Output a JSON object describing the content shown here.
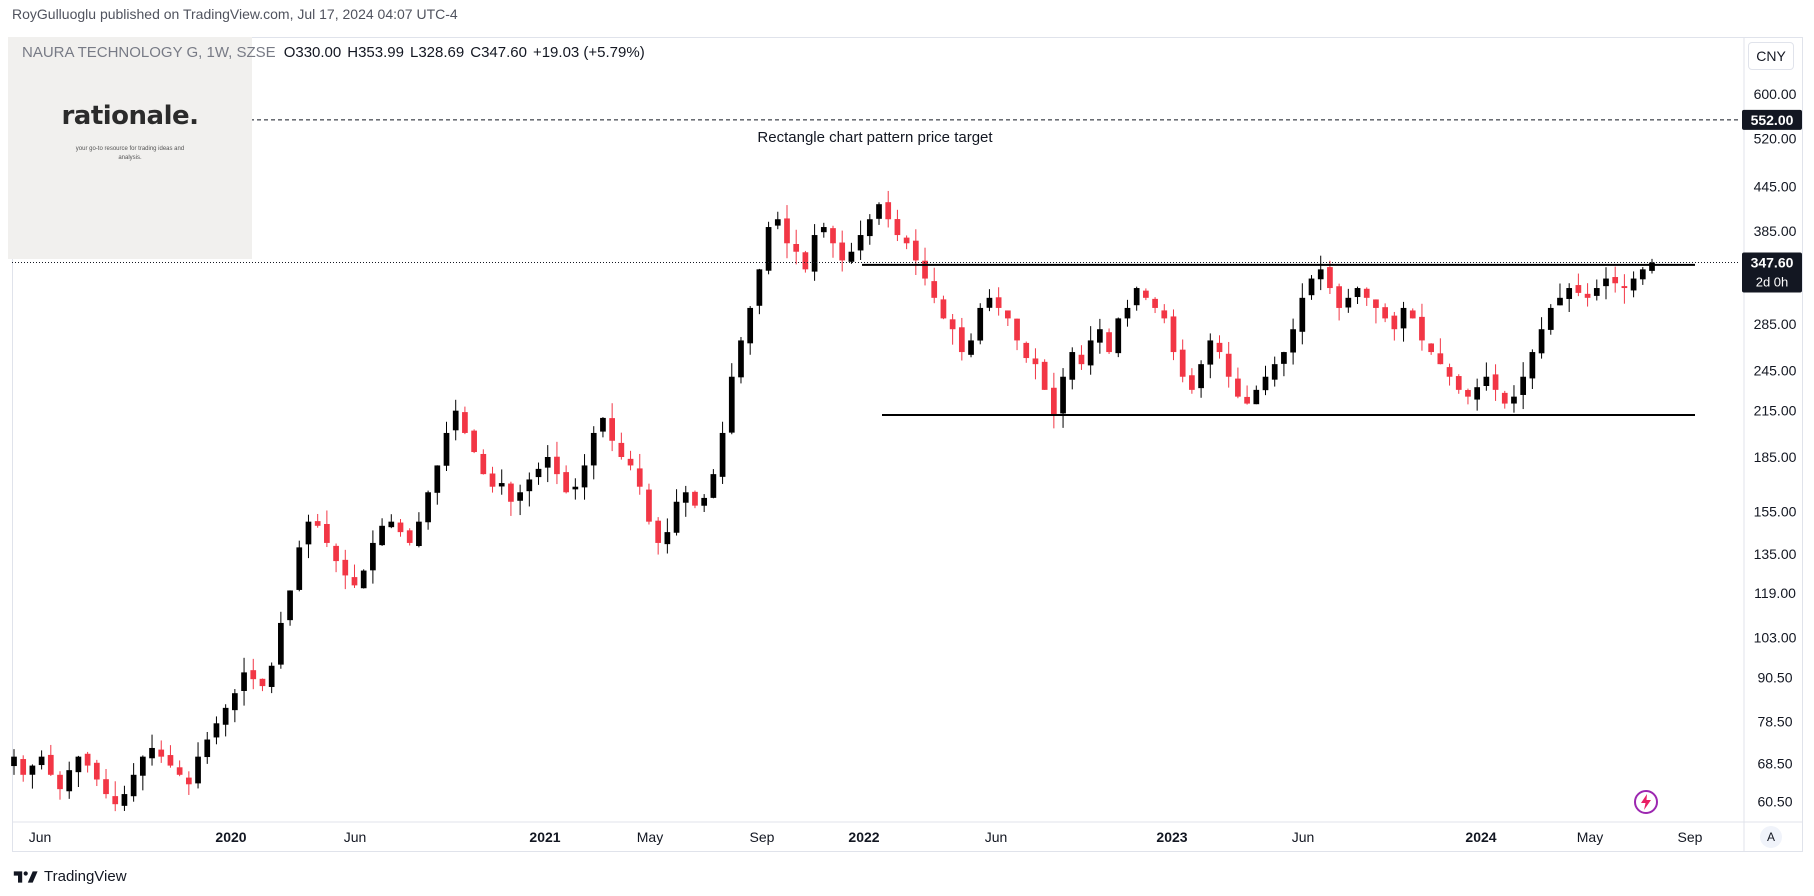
{
  "header": {
    "published": "RoyGulluoglu published on TradingView.com, Jul 17, 2024 04:07 UTC-4"
  },
  "legend": {
    "symbol": "NAURA TECHNOLOGY G, 1W, SZSE",
    "open_label": "O",
    "open": "330.00",
    "high_label": "H",
    "high": "353.99",
    "low_label": "L",
    "low": "328.69",
    "close_label": "C",
    "close": "347.60",
    "change": "+19.03 (+5.79%)"
  },
  "currency": "CNY",
  "branding": {
    "logo_text": "rationale.",
    "tagline": "your go-to resource for trading ideas and analysis."
  },
  "footer": {
    "brand": "TradingView"
  },
  "auto_label": "A",
  "colors": {
    "up": "#000000",
    "down": "#f23645",
    "grid": "#ffffff",
    "text": "#131722"
  },
  "chart_data": {
    "type": "candlestick",
    "title": "",
    "xlabel": "",
    "ylabel": "",
    "y_scale": "log",
    "ylim": [
      57,
      720
    ],
    "x_tick_labels": [
      "Jun",
      "2020",
      "Jun",
      "2021",
      "May",
      "Sep",
      "2022",
      "Jun",
      "2023",
      "Jun",
      "2024",
      "May",
      "Sep"
    ],
    "y_tick_labels": [
      "600.00",
      "520.00",
      "445.00",
      "385.00",
      "285.00",
      "245.00",
      "215.00",
      "185.00",
      "155.00",
      "135.00",
      "119.00",
      "103.00",
      "90.50",
      "78.50",
      "68.50",
      "60.50"
    ],
    "last_price": "347.60",
    "last_price_countdown": "2d 0h",
    "target_price": "552.00",
    "annotation": "Rectangle chart pattern price target",
    "resistance": 345,
    "support": 212,
    "grid": false,
    "series_approx_weekly_close": [
      70,
      66,
      68,
      70,
      66,
      63,
      67,
      70,
      68,
      65,
      62,
      60,
      62,
      66,
      70,
      72,
      70,
      68,
      66,
      64,
      70,
      74,
      78,
      82,
      86,
      92,
      90,
      88,
      94,
      108,
      120,
      138,
      150,
      148,
      140,
      132,
      126,
      122,
      128,
      140,
      148,
      150,
      145,
      140,
      150,
      165,
      180,
      200,
      215,
      200,
      188,
      175,
      168,
      170,
      160,
      165,
      172,
      178,
      185,
      175,
      165,
      168,
      180,
      200,
      210,
      195,
      185,
      180,
      168,
      150,
      140,
      145,
      160,
      165,
      158,
      162,
      175,
      200,
      240,
      270,
      300,
      340,
      390,
      400,
      370,
      360,
      340,
      380,
      390,
      370,
      350,
      360,
      380,
      400,
      420,
      400,
      380,
      370,
      350,
      330,
      310,
      290,
      280,
      260,
      270,
      300,
      310,
      300,
      290,
      270,
      255,
      250,
      230,
      212,
      240,
      260,
      250,
      270,
      280,
      260,
      290,
      300,
      320,
      310,
      300,
      290,
      260,
      240,
      230,
      250,
      270,
      260,
      240,
      225,
      220,
      230,
      240,
      250,
      260,
      280,
      310,
      330,
      340,
      320,
      300,
      310,
      320,
      310,
      300,
      290,
      280,
      300,
      290,
      270,
      260,
      250,
      240,
      230,
      225,
      232,
      240,
      230,
      220,
      225,
      240,
      260,
      280,
      300,
      310,
      320,
      315,
      310,
      320,
      330,
      325,
      320,
      330,
      340,
      347.6
    ]
  }
}
